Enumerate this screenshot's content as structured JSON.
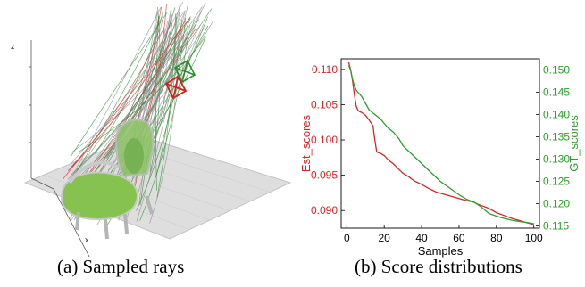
{
  "panel_a": {
    "caption": "(a) Sampled rays",
    "axis_labels": {
      "z": "z",
      "x": "x"
    },
    "colors": {
      "ray_gray": "#8c8c8c",
      "ray_green": "#2e8b2e",
      "ray_red": "#cc2222",
      "floor": "#d9d9d9",
      "object": "#7cc04a"
    },
    "scene_marks": [
      "chair-object",
      "camera-frustum-green",
      "camera-frustum-red",
      "ray-bundle",
      "ground-plane"
    ]
  },
  "panel_b": {
    "caption": "(b) Score distributions"
  },
  "chart_data": {
    "type": "line",
    "xlabel": "Samples",
    "ylabel_left": "Est_scores",
    "ylabel_right": "GT_scores",
    "xlim": [
      -3,
      103
    ],
    "ylim_left": [
      0.0875,
      0.1115
    ],
    "ylim_right": [
      0.1145,
      0.1525
    ],
    "x_ticks": [
      0,
      20,
      40,
      60,
      80,
      100
    ],
    "y_ticks_left": [
      0.09,
      0.095,
      0.1,
      0.105,
      0.11
    ],
    "y_ticks_right": [
      0.115,
      0.12,
      0.125,
      0.13,
      0.135,
      0.14,
      0.145,
      0.15
    ],
    "grid": false,
    "series": [
      {
        "name": "Est_scores",
        "axis": "left",
        "color": "#d62728",
        "x": [
          1,
          2,
          3,
          4,
          5,
          6,
          7,
          8,
          10,
          12,
          14,
          15,
          16,
          18,
          20,
          22,
          25,
          28,
          30,
          33,
          36,
          40,
          44,
          48,
          52,
          56,
          60,
          64,
          68,
          70,
          72,
          75,
          78,
          80,
          84,
          88,
          92,
          96,
          100
        ],
        "y": [
          0.111,
          0.11,
          0.1085,
          0.1065,
          0.1048,
          0.1042,
          0.104,
          0.1039,
          0.1035,
          0.1028,
          0.102,
          0.1,
          0.0983,
          0.0981,
          0.0978,
          0.0972,
          0.0966,
          0.0958,
          0.0953,
          0.0948,
          0.0942,
          0.0937,
          0.0931,
          0.0926,
          0.0923,
          0.092,
          0.0917,
          0.0914,
          0.0912,
          0.0909,
          0.0907,
          0.0904,
          0.09,
          0.0897,
          0.0893,
          0.0889,
          0.0886,
          0.0883,
          0.088
        ]
      },
      {
        "name": "GT_scores",
        "axis": "right",
        "color": "#2ca02c",
        "x": [
          1,
          2,
          3,
          4,
          5,
          6,
          8,
          10,
          12,
          15,
          18,
          20,
          22,
          25,
          28,
          30,
          35,
          40,
          45,
          50,
          55,
          60,
          64,
          68,
          70,
          72,
          74,
          76,
          80,
          84,
          88,
          92,
          96,
          100
        ],
        "y": [
          0.151,
          0.15,
          0.148,
          0.1465,
          0.1455,
          0.145,
          0.144,
          0.1425,
          0.141,
          0.14,
          0.139,
          0.138,
          0.137,
          0.136,
          0.1345,
          0.133,
          0.131,
          0.129,
          0.127,
          0.125,
          0.1235,
          0.122,
          0.121,
          0.1203,
          0.1198,
          0.1192,
          0.1185,
          0.1178,
          0.1172,
          0.1167,
          0.1163,
          0.116,
          0.1158,
          0.1155
        ]
      }
    ]
  }
}
